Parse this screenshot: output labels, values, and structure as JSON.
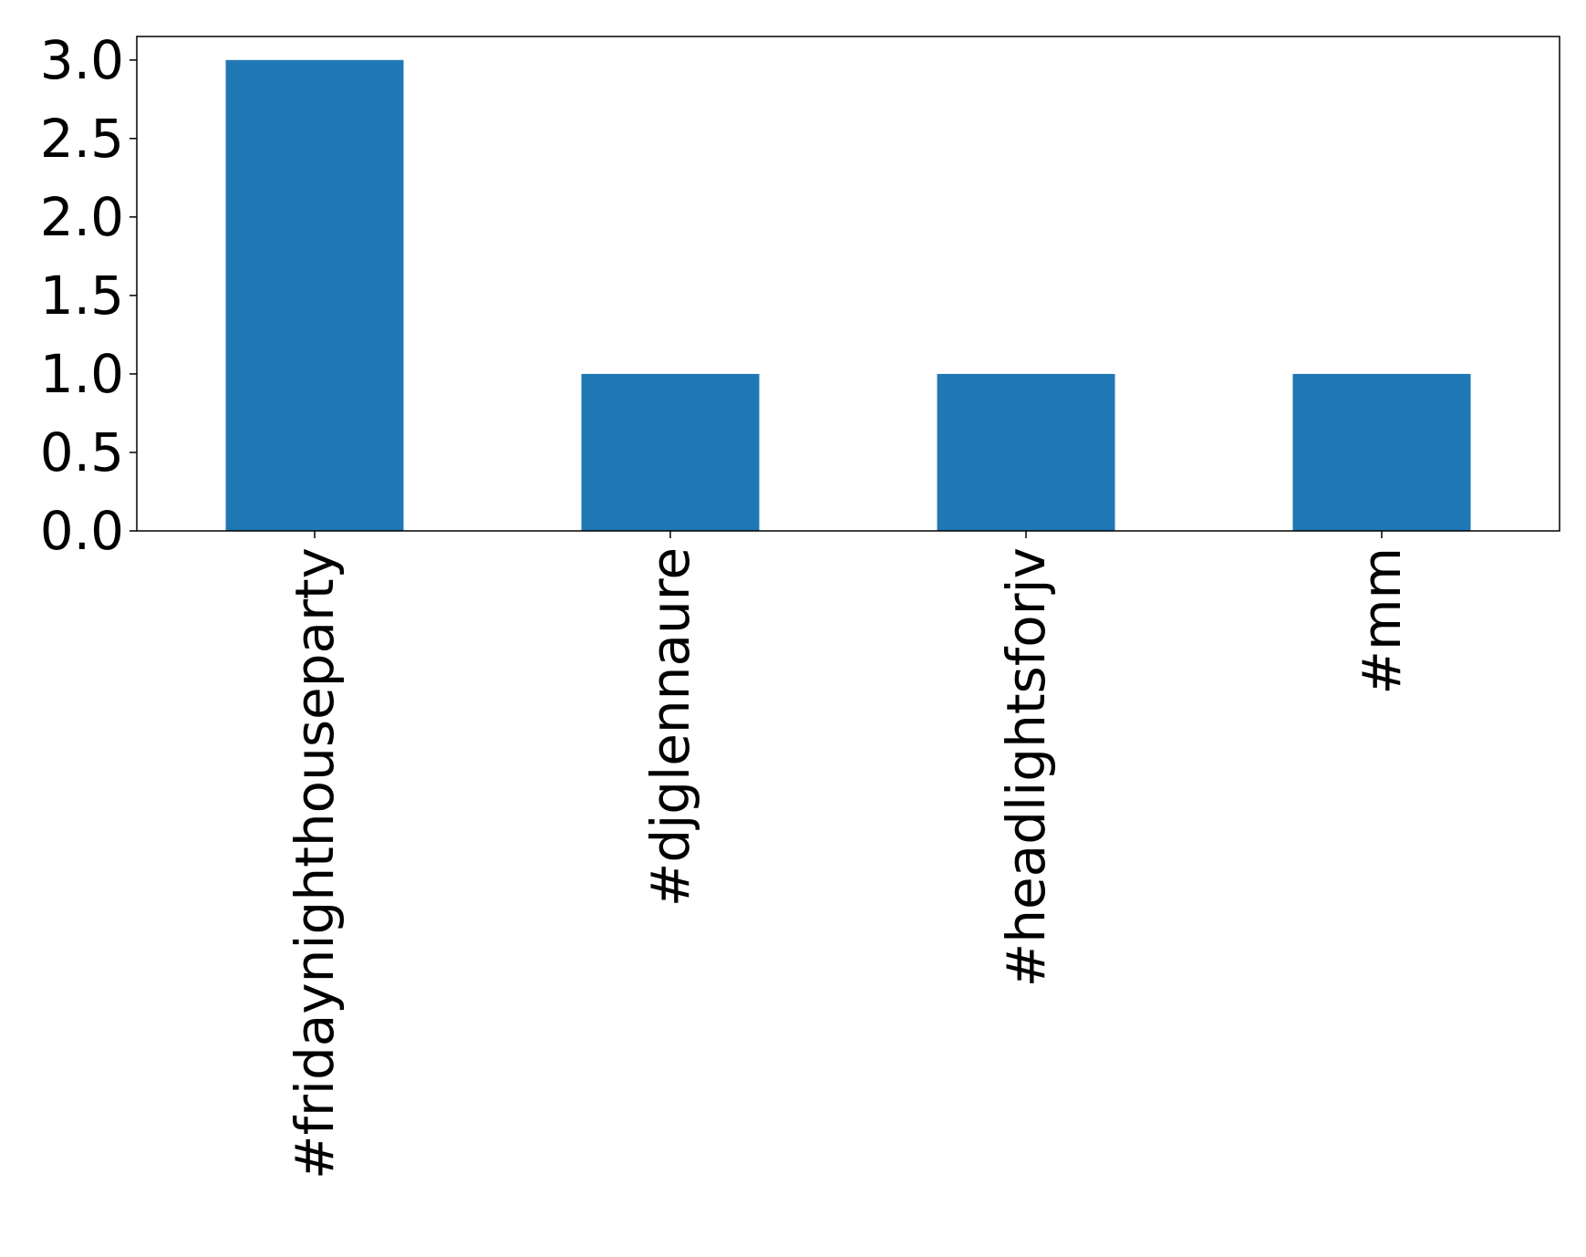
{
  "chart_data": {
    "type": "bar",
    "title": "",
    "xlabel": "",
    "ylabel": "",
    "categories": [
      "#fridaynighthouseparty",
      "#djglennaure",
      "#headlightsforjv",
      "#mm"
    ],
    "values": [
      3.0,
      1.0,
      1.0,
      1.0
    ],
    "ylim": [
      0,
      3.15
    ],
    "yticks": [
      "0.0",
      "0.5",
      "1.0",
      "1.5",
      "2.0",
      "2.5",
      "3.0"
    ],
    "ytick_values": [
      0,
      0.5,
      1.0,
      1.5,
      2.0,
      2.5,
      3.0
    ],
    "bar_color": "#1f77b4",
    "grid": false,
    "legend": "none",
    "xtick_rotation": "vertical"
  }
}
